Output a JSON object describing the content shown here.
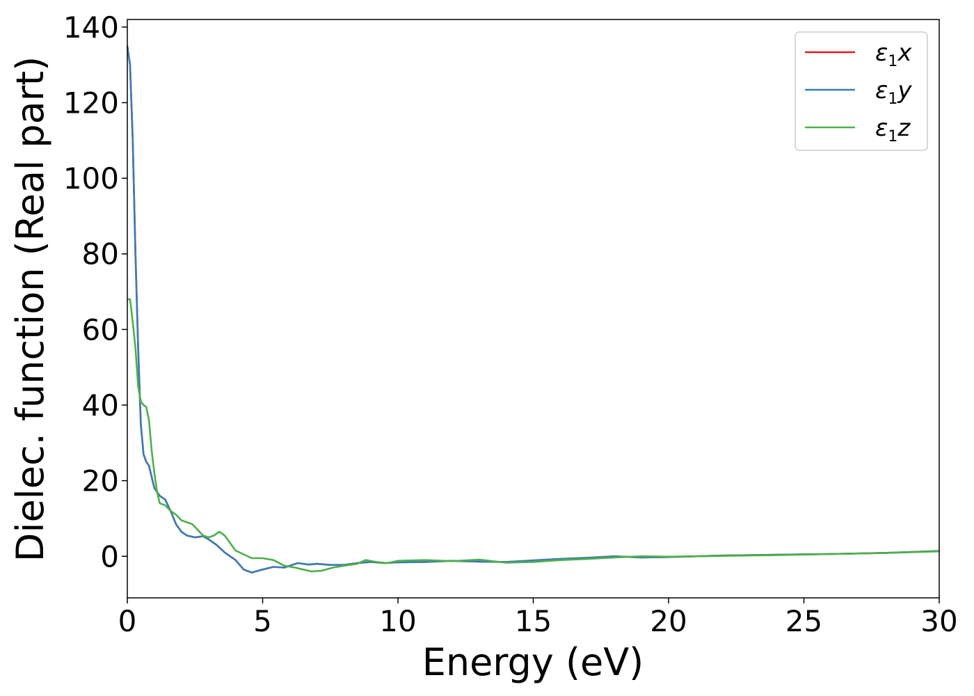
{
  "chart_data": {
    "type": "line",
    "xlabel": "Energy (eV)",
    "ylabel": "Dielec. function (Real part)",
    "xlim": [
      0,
      30
    ],
    "ylim": [
      -11,
      142
    ],
    "xticks": [
      0,
      5,
      10,
      15,
      20,
      25,
      30
    ],
    "yticks": [
      0,
      20,
      40,
      60,
      80,
      100,
      120,
      140
    ],
    "grid": false,
    "legend_position": "top-right",
    "series": [
      {
        "name": "ε1x",
        "legend_base": "ε",
        "legend_sub": "1",
        "legend_var": "x",
        "color": "#e41a1c",
        "points": [
          [
            0,
            135
          ],
          [
            0.1,
            130
          ],
          [
            0.2,
            110
          ],
          [
            0.3,
            80
          ],
          [
            0.4,
            55
          ],
          [
            0.5,
            35
          ],
          [
            0.6,
            27
          ],
          [
            0.7,
            25
          ],
          [
            0.8,
            24
          ],
          [
            0.9,
            21
          ],
          [
            1.0,
            18
          ],
          [
            1.2,
            16
          ],
          [
            1.4,
            15
          ],
          [
            1.6,
            12
          ],
          [
            1.8,
            8.5
          ],
          [
            2.0,
            6.5
          ],
          [
            2.2,
            5.5
          ],
          [
            2.5,
            5.0
          ],
          [
            2.8,
            5.3
          ],
          [
            3.0,
            4.5
          ],
          [
            3.3,
            3.0
          ],
          [
            3.6,
            1.0
          ],
          [
            4.0,
            -1.0
          ],
          [
            4.3,
            -3.5
          ],
          [
            4.6,
            -4.3
          ],
          [
            5.0,
            -3.5
          ],
          [
            5.4,
            -2.8
          ],
          [
            5.8,
            -3.0
          ],
          [
            6.0,
            -2.5
          ],
          [
            6.3,
            -1.8
          ],
          [
            6.7,
            -2.2
          ],
          [
            7.0,
            -2.0
          ],
          [
            7.5,
            -2.3
          ],
          [
            8.0,
            -2.3
          ],
          [
            8.5,
            -1.8
          ],
          [
            9.0,
            -1.5
          ],
          [
            9.5,
            -1.8
          ],
          [
            10,
            -1.6
          ],
          [
            11,
            -1.5
          ],
          [
            12,
            -1.2
          ],
          [
            13,
            -1.4
          ],
          [
            14,
            -1.5
          ],
          [
            15,
            -1.1
          ],
          [
            16,
            -0.7
          ],
          [
            17,
            -0.4
          ],
          [
            18,
            0.0
          ],
          [
            19,
            -0.3
          ],
          [
            20,
            -0.2
          ],
          [
            22,
            0.2
          ],
          [
            24,
            0.4
          ],
          [
            26,
            0.6
          ],
          [
            28,
            0.9
          ],
          [
            30,
            1.4
          ]
        ]
      },
      {
        "name": "ε1y",
        "legend_base": "ε",
        "legend_sub": "1",
        "legend_var": "y",
        "color": "#377eb8",
        "points": [
          [
            0,
            135
          ],
          [
            0.1,
            130
          ],
          [
            0.2,
            110
          ],
          [
            0.3,
            80
          ],
          [
            0.4,
            55
          ],
          [
            0.5,
            35
          ],
          [
            0.6,
            27
          ],
          [
            0.7,
            25
          ],
          [
            0.8,
            24
          ],
          [
            0.9,
            21
          ],
          [
            1.0,
            18
          ],
          [
            1.2,
            16
          ],
          [
            1.4,
            15
          ],
          [
            1.6,
            12
          ],
          [
            1.8,
            8.5
          ],
          [
            2.0,
            6.5
          ],
          [
            2.2,
            5.5
          ],
          [
            2.5,
            5.0
          ],
          [
            2.8,
            5.3
          ],
          [
            3.0,
            4.5
          ],
          [
            3.3,
            3.0
          ],
          [
            3.6,
            1.0
          ],
          [
            4.0,
            -1.0
          ],
          [
            4.3,
            -3.5
          ],
          [
            4.6,
            -4.3
          ],
          [
            5.0,
            -3.5
          ],
          [
            5.4,
            -2.8
          ],
          [
            5.8,
            -3.0
          ],
          [
            6.0,
            -2.5
          ],
          [
            6.3,
            -1.8
          ],
          [
            6.7,
            -2.2
          ],
          [
            7.0,
            -2.0
          ],
          [
            7.5,
            -2.3
          ],
          [
            8.0,
            -2.3
          ],
          [
            8.5,
            -1.8
          ],
          [
            9.0,
            -1.5
          ],
          [
            9.5,
            -1.8
          ],
          [
            10,
            -1.6
          ],
          [
            11,
            -1.5
          ],
          [
            12,
            -1.2
          ],
          [
            13,
            -1.4
          ],
          [
            14,
            -1.5
          ],
          [
            15,
            -1.1
          ],
          [
            16,
            -0.7
          ],
          [
            17,
            -0.4
          ],
          [
            18,
            0.0
          ],
          [
            19,
            -0.3
          ],
          [
            20,
            -0.2
          ],
          [
            22,
            0.2
          ],
          [
            24,
            0.4
          ],
          [
            26,
            0.6
          ],
          [
            28,
            0.9
          ],
          [
            30,
            1.4
          ]
        ]
      },
      {
        "name": "ε1z",
        "legend_base": "ε",
        "legend_sub": "1",
        "legend_var": "z",
        "color": "#4daf4a",
        "points": [
          [
            0,
            68
          ],
          [
            0.1,
            68
          ],
          [
            0.2,
            62
          ],
          [
            0.3,
            55
          ],
          [
            0.4,
            45
          ],
          [
            0.5,
            41
          ],
          [
            0.6,
            40
          ],
          [
            0.7,
            39.5
          ],
          [
            0.8,
            36
          ],
          [
            0.9,
            28
          ],
          [
            1.0,
            22
          ],
          [
            1.1,
            17
          ],
          [
            1.2,
            14
          ],
          [
            1.4,
            13.5
          ],
          [
            1.6,
            12
          ],
          [
            1.8,
            11
          ],
          [
            2.0,
            9.5
          ],
          [
            2.2,
            9
          ],
          [
            2.4,
            8.5
          ],
          [
            2.6,
            7
          ],
          [
            2.8,
            5.5
          ],
          [
            3.0,
            5.0
          ],
          [
            3.2,
            5.5
          ],
          [
            3.4,
            6.5
          ],
          [
            3.6,
            5.5
          ],
          [
            3.8,
            3.5
          ],
          [
            4.0,
            1.5
          ],
          [
            4.3,
            0.5
          ],
          [
            4.6,
            -0.5
          ],
          [
            5.0,
            -0.5
          ],
          [
            5.4,
            -1.0
          ],
          [
            5.8,
            -2.5
          ],
          [
            6.2,
            -3.0
          ],
          [
            6.5,
            -3.5
          ],
          [
            6.8,
            -4.0
          ],
          [
            7.2,
            -3.8
          ],
          [
            7.6,
            -3.0
          ],
          [
            8.0,
            -2.5
          ],
          [
            8.5,
            -2.0
          ],
          [
            8.8,
            -1.0
          ],
          [
            9.2,
            -1.5
          ],
          [
            9.6,
            -1.8
          ],
          [
            10,
            -1.2
          ],
          [
            11,
            -1.0
          ],
          [
            12,
            -1.3
          ],
          [
            13,
            -0.9
          ],
          [
            14,
            -1.7
          ],
          [
            15,
            -1.5
          ],
          [
            16,
            -1.0
          ],
          [
            17,
            -0.7
          ],
          [
            18,
            -0.3
          ],
          [
            19,
            0.0
          ],
          [
            20,
            -0.1
          ],
          [
            22,
            0.1
          ],
          [
            24,
            0.3
          ],
          [
            26,
            0.6
          ],
          [
            28,
            0.9
          ],
          [
            30,
            1.3
          ]
        ]
      }
    ]
  }
}
